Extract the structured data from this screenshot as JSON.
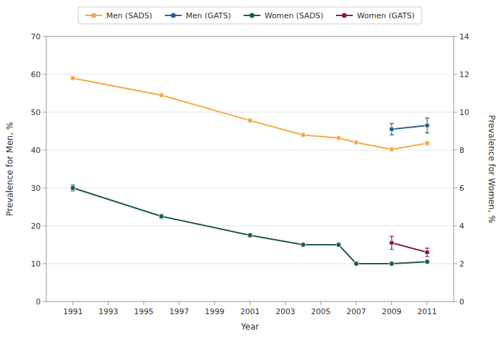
{
  "chart_data": {
    "type": "line",
    "xlabel": "Year",
    "ylabel": "Prevalence for Men, %",
    "y2label": "Prevalence for Women, %",
    "xlim": [
      1989.5,
      2012.5
    ],
    "xticks": [
      1991,
      1993,
      1995,
      1997,
      1999,
      2001,
      2003,
      2005,
      2007,
      2009,
      2011
    ],
    "ylim": [
      0,
      70
    ],
    "yticks": [
      0,
      10,
      20,
      30,
      40,
      50,
      60,
      70
    ],
    "y2lim": [
      0,
      14
    ],
    "y2ticks": [
      0,
      2,
      4,
      6,
      8,
      10,
      12,
      14
    ],
    "grid": true,
    "legend": "top",
    "series": [
      {
        "name": "Men (SADS)",
        "color": "#F4A942",
        "marker": "circle",
        "x": [
          1991,
          1996,
          2001,
          2004,
          2006,
          2007,
          2009,
          2011
        ],
        "values": [
          59.0,
          54.5,
          47.8,
          44.0,
          43.2,
          42.0,
          40.2,
          41.8
        ],
        "errors": [
          0.5,
          0.4,
          0.5,
          0.4,
          0.4,
          0.4,
          0.4,
          0.5
        ]
      },
      {
        "name": "Men (GATS)",
        "color": "#2E5F8A",
        "marker": "circle",
        "x": [
          2009,
          2011
        ],
        "values": [
          45.5,
          46.5
        ],
        "errors": [
          1.5,
          2.0
        ]
      },
      {
        "name": "Women (SADS)",
        "color": "#1A5C38",
        "marker": "circle",
        "axis": "y2",
        "x": [
          1991,
          1996,
          2001,
          2004,
          2006,
          2007,
          2009,
          2011
        ],
        "values": [
          6.0,
          4.5,
          3.5,
          3.0,
          3.0,
          2.0,
          2.0,
          2.1
        ],
        "errors": [
          0.15,
          0.12,
          0.1,
          0.08,
          0.08,
          0.08,
          0.08,
          0.08
        ]
      },
      {
        "name": "Women (GATS)",
        "color": "#8B1A4A",
        "marker": "circle",
        "axis": "y2",
        "x": [
          2009,
          2011
        ],
        "values": [
          3.1,
          2.6
        ],
        "errors": [
          0.35,
          0.22
        ]
      }
    ]
  }
}
